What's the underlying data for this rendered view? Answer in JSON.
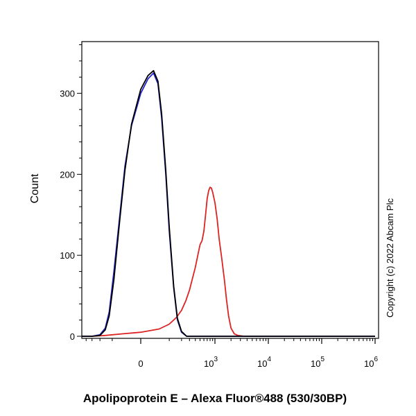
{
  "chart_data": {
    "type": "line",
    "title": "",
    "xlabel": "Apolipoprotein E – Alexa Fluor®488 (530/30BP)",
    "ylabel": "Count",
    "x_scale": "biexponential",
    "x_ticks": [
      {
        "value": 0,
        "base": "0",
        "exp": ""
      },
      {
        "value": 1000,
        "base": "10",
        "exp": "3"
      },
      {
        "value": 10000,
        "base": "10",
        "exp": "4"
      },
      {
        "value": 100000,
        "base": "10",
        "exp": "5"
      },
      {
        "value": 1000000,
        "base": "10",
        "exp": "6"
      }
    ],
    "y_ticks": [
      0,
      100,
      200,
      300
    ],
    "ylim": [
      0,
      360
    ],
    "grid": false,
    "legend": "none",
    "annotation": "Copyright (c) 2022 Abcam Plc",
    "series": [
      {
        "color": "#dd2222",
        "points": [
          [
            -2000,
            0
          ],
          [
            -300,
            0
          ],
          [
            -150,
            1
          ],
          [
            -50,
            3
          ],
          [
            0,
            5
          ],
          [
            50,
            9
          ],
          [
            100,
            15
          ],
          [
            150,
            23
          ],
          [
            200,
            32
          ],
          [
            250,
            44
          ],
          [
            300,
            57
          ],
          [
            350,
            72
          ],
          [
            400,
            85
          ],
          [
            450,
            100
          ],
          [
            500,
            113
          ],
          [
            550,
            118
          ],
          [
            600,
            130
          ],
          [
            650,
            150
          ],
          [
            700,
            170
          ],
          [
            750,
            180
          ],
          [
            800,
            184
          ],
          [
            850,
            183
          ],
          [
            900,
            178
          ],
          [
            1000,
            165
          ],
          [
            1100,
            145
          ],
          [
            1200,
            120
          ],
          [
            1350,
            95
          ],
          [
            1500,
            70
          ],
          [
            1650,
            45
          ],
          [
            1800,
            25
          ],
          [
            2000,
            10
          ],
          [
            2300,
            3
          ],
          [
            2700,
            1
          ],
          [
            3500,
            0
          ],
          [
            10000,
            0
          ],
          [
            100000,
            0
          ],
          [
            1000000,
            0
          ]
        ]
      },
      {
        "color": "#2222cc",
        "points": [
          [
            -2000,
            0
          ],
          [
            -300,
            0
          ],
          [
            -200,
            2
          ],
          [
            -150,
            10
          ],
          [
            -120,
            30
          ],
          [
            -90,
            80
          ],
          [
            -60,
            150
          ],
          [
            -40,
            210
          ],
          [
            -20,
            260
          ],
          [
            0,
            300
          ],
          [
            15,
            318
          ],
          [
            30,
            325
          ],
          [
            45,
            312
          ],
          [
            60,
            270
          ],
          [
            80,
            200
          ],
          [
            100,
            130
          ],
          [
            130,
            60
          ],
          [
            160,
            20
          ],
          [
            200,
            5
          ],
          [
            260,
            0
          ],
          [
            1000,
            0
          ],
          [
            1000000,
            0
          ]
        ]
      },
      {
        "color": "#000000",
        "points": [
          [
            -2000,
            0
          ],
          [
            -300,
            0
          ],
          [
            -200,
            1
          ],
          [
            -150,
            8
          ],
          [
            -120,
            25
          ],
          [
            -90,
            70
          ],
          [
            -60,
            145
          ],
          [
            -40,
            205
          ],
          [
            -20,
            262
          ],
          [
            0,
            305
          ],
          [
            15,
            322
          ],
          [
            30,
            328
          ],
          [
            45,
            315
          ],
          [
            60,
            275
          ],
          [
            80,
            205
          ],
          [
            100,
            135
          ],
          [
            130,
            62
          ],
          [
            160,
            22
          ],
          [
            200,
            6
          ],
          [
            260,
            0
          ],
          [
            1000,
            0
          ],
          [
            1000000,
            0
          ]
        ]
      }
    ]
  }
}
